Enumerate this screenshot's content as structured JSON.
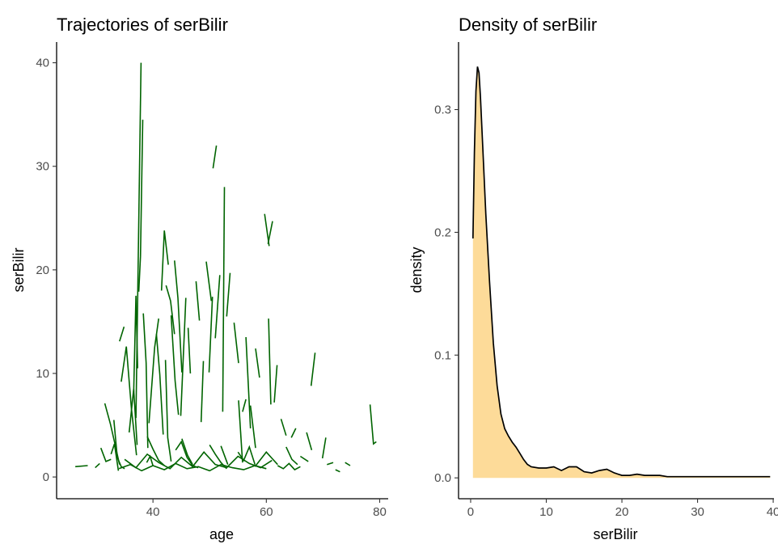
{
  "chart_data": [
    {
      "type": "line",
      "title": "Trajectories of serBilir",
      "xlabel": "age",
      "ylabel": "serBilir",
      "xlim": [
        23,
        81.5
      ],
      "ylim": [
        -2.1,
        42
      ],
      "xticks": [
        40,
        60,
        80
      ],
      "yticks": [
        0,
        10,
        20,
        30,
        40
      ],
      "grid": false,
      "line_color": "#006400",
      "series": [
        {
          "x": [
            26.3,
            28.5
          ],
          "y": [
            1.0,
            1.1
          ]
        },
        {
          "x": [
            29.8,
            30.6
          ],
          "y": [
            0.9,
            1.3
          ]
        },
        {
          "x": [
            30.8,
            31.7,
            32.6
          ],
          "y": [
            2.8,
            1.5,
            1.7
          ]
        },
        {
          "x": [
            31.5,
            32.5,
            33.2,
            34.1
          ],
          "y": [
            7.1,
            5.1,
            3.4,
            1.2
          ]
        },
        {
          "x": [
            32.6,
            33.2,
            33.9
          ],
          "y": [
            2.2,
            3.2,
            0.6
          ]
        },
        {
          "x": [
            33.1,
            33.7,
            34.4,
            35.0
          ],
          "y": [
            5.5,
            1.9,
            1.0,
            0.8
          ]
        },
        {
          "x": [
            34.1,
            34.9
          ],
          "y": [
            13.1,
            14.5
          ]
        },
        {
          "x": [
            34.4,
            35.3,
            36.2,
            37.1
          ],
          "y": [
            9.2,
            12.6,
            6.6,
            2.1
          ]
        },
        {
          "x": [
            35.8,
            36.6,
            37.2
          ],
          "y": [
            4.3,
            8.5,
            3.1
          ]
        },
        {
          "x": [
            36.6,
            37.0,
            37.3
          ],
          "y": [
            8.2,
            17.5,
            10.5
          ]
        },
        {
          "x": [
            37.0,
            37.9
          ],
          "y": [
            5.7,
            40.0
          ]
        },
        {
          "x": [
            37.5,
            37.8,
            38.2
          ],
          "y": [
            17.9,
            21.3,
            34.5
          ]
        },
        {
          "x": [
            38.3,
            38.8,
            39.1
          ],
          "y": [
            15.8,
            11.0,
            2.8
          ]
        },
        {
          "x": [
            38.9,
            39.5,
            40.0
          ],
          "y": [
            1.4,
            2.0,
            1.1
          ]
        },
        {
          "x": [
            39.3,
            40.3,
            41.0
          ],
          "y": [
            5.2,
            12.5,
            15.3
          ]
        },
        {
          "x": [
            40.6,
            41.2,
            41.8
          ],
          "y": [
            13.8,
            9.9,
            4.1
          ]
        },
        {
          "x": [
            41.5,
            42.0,
            42.7
          ],
          "y": [
            18.0,
            23.8,
            20.5
          ]
        },
        {
          "x": [
            42.2,
            42.6,
            43.2
          ],
          "y": [
            11.3,
            3.8,
            1.5
          ]
        },
        {
          "x": [
            42.3,
            43.1,
            43.8
          ],
          "y": [
            18.5,
            17.0,
            13.8
          ]
        },
        {
          "x": [
            43.2,
            43.9,
            44.5
          ],
          "y": [
            15.6,
            9.3,
            6.0
          ]
        },
        {
          "x": [
            43.8,
            44.4,
            45.1
          ],
          "y": [
            20.9,
            17.3,
            10.1
          ]
        },
        {
          "x": [
            44.9,
            45.8
          ],
          "y": [
            5.9,
            17.3
          ]
        },
        {
          "x": [
            46.2,
            46.6
          ],
          "y": [
            14.4,
            10.0
          ]
        },
        {
          "x": [
            45.1,
            46.1,
            47.0
          ],
          "y": [
            3.7,
            2.1,
            1.2
          ]
        },
        {
          "x": [
            47.6,
            48.2
          ],
          "y": [
            18.9,
            15.1
          ]
        },
        {
          "x": [
            48.5,
            48.9
          ],
          "y": [
            5.3,
            11.2
          ]
        },
        {
          "x": [
            49.4,
            50.3
          ],
          "y": [
            20.8,
            17.0
          ]
        },
        {
          "x": [
            49.9,
            50.5
          ],
          "y": [
            10.1,
            17.4
          ]
        },
        {
          "x": [
            50.6,
            51.2
          ],
          "y": [
            29.8,
            32.0
          ]
        },
        {
          "x": [
            51.0,
            51.8
          ],
          "y": [
            13.4,
            19.5
          ]
        },
        {
          "x": [
            52.3,
            52.6
          ],
          "y": [
            6.3,
            28.0
          ]
        },
        {
          "x": [
            53.0,
            53.6
          ],
          "y": [
            15.5,
            19.7
          ]
        },
        {
          "x": [
            52.0,
            53.2
          ],
          "y": [
            3.0,
            1.2
          ]
        },
        {
          "x": [
            54.3,
            55.1
          ],
          "y": [
            14.9,
            11.0
          ]
        },
        {
          "x": [
            55.1,
            55.8
          ],
          "y": [
            7.4,
            1.4
          ]
        },
        {
          "x": [
            55.8,
            56.4
          ],
          "y": [
            6.3,
            7.5
          ]
        },
        {
          "x": [
            56.4,
            57.2
          ],
          "y": [
            13.5,
            4.7
          ]
        },
        {
          "x": [
            57.2,
            58.1
          ],
          "y": [
            6.9,
            2.8
          ]
        },
        {
          "x": [
            58.1,
            58.8
          ],
          "y": [
            12.4,
            9.6
          ]
        },
        {
          "x": [
            59.7,
            60.5
          ],
          "y": [
            25.4,
            22.3
          ]
        },
        {
          "x": [
            60.3,
            61.1
          ],
          "y": [
            22.5,
            24.7
          ]
        },
        {
          "x": [
            60.4,
            60.8
          ],
          "y": [
            15.3,
            7.0
          ]
        },
        {
          "x": [
            61.4,
            61.9
          ],
          "y": [
            7.2,
            10.8
          ]
        },
        {
          "x": [
            58.0,
            59.0,
            60.0,
            61.0,
            62.0
          ],
          "y": [
            1.0,
            1.7,
            2.4,
            1.8,
            1.2
          ]
        },
        {
          "x": [
            62.6,
            63.5
          ],
          "y": [
            5.6,
            4.0
          ]
        },
        {
          "x": [
            64.4,
            65.2
          ],
          "y": [
            3.8,
            4.7
          ]
        },
        {
          "x": [
            67.9,
            68.6
          ],
          "y": [
            8.8,
            12.0
          ]
        },
        {
          "x": [
            67.1,
            68.0
          ],
          "y": [
            4.3,
            2.6
          ]
        },
        {
          "x": [
            66.0,
            67.4
          ],
          "y": [
            2.0,
            1.5
          ]
        },
        {
          "x": [
            69.9,
            70.5
          ],
          "y": [
            1.8,
            3.8
          ]
        },
        {
          "x": [
            70.7,
            71.8
          ],
          "y": [
            1.2,
            1.4
          ]
        },
        {
          "x": [
            73.9,
            74.8
          ],
          "y": [
            1.4,
            1.1
          ]
        },
        {
          "x": [
            72.2,
            73.0
          ],
          "y": [
            0.7,
            0.5
          ]
        },
        {
          "x": [
            78.3,
            78.9,
            79.4
          ],
          "y": [
            7.0,
            3.2,
            3.4
          ]
        },
        {
          "x": [
            34.0,
            36.0,
            38.0,
            40.0,
            42.0,
            44.0,
            46.0,
            48.0,
            50.0,
            52.0,
            54.0,
            56.0,
            58.0,
            60.0
          ],
          "y": [
            0.8,
            1.2,
            0.6,
            1.1,
            0.7,
            1.3,
            0.8,
            1.0,
            0.6,
            1.2,
            0.9,
            0.7,
            1.1,
            0.8
          ]
        },
        {
          "x": [
            35.0,
            37.0,
            39.0,
            41.0,
            43.0,
            45.0,
            47.0,
            49.0,
            51.0,
            53.0,
            55.0,
            57.0,
            59.0,
            61.0
          ],
          "y": [
            1.7,
            0.9,
            2.2,
            1.4,
            0.8,
            1.9,
            1.0,
            2.4,
            1.2,
            0.9,
            2.0,
            1.3,
            0.9,
            1.6
          ]
        },
        {
          "x": [
            44.0,
            45.0,
            46.0,
            47.0,
            48.0
          ],
          "y": [
            2.6,
            3.4,
            1.9,
            1.1,
            0.9
          ]
        },
        {
          "x": [
            50.0,
            51.0,
            52.0,
            53.0
          ],
          "y": [
            3.1,
            2.2,
            1.4,
            0.8
          ]
        },
        {
          "x": [
            55.0,
            56.0,
            57.0,
            58.0
          ],
          "y": [
            2.4,
            1.6,
            2.9,
            1.2
          ]
        },
        {
          "x": [
            62.0,
            63.0,
            64.0,
            65.0,
            66.0
          ],
          "y": [
            1.1,
            0.8,
            1.3,
            0.7,
            1.0
          ]
        },
        {
          "x": [
            39.0,
            40.0,
            41.0,
            42.0
          ],
          "y": [
            3.9,
            2.7,
            1.6,
            1.1
          ]
        },
        {
          "x": [
            63.5,
            64.5,
            65.5
          ],
          "y": [
            2.9,
            1.7,
            1.2
          ]
        }
      ]
    },
    {
      "type": "area",
      "title": "Density of serBilir",
      "xlabel": "serBilir",
      "ylabel": "density",
      "xlim": [
        -1.6,
        40.1
      ],
      "ylim": [
        -0.017,
        0.355
      ],
      "xticks": [
        0,
        10,
        20,
        30,
        40
      ],
      "yticks": [
        0.0,
        0.1,
        0.2,
        0.3
      ],
      "ytick_labels": [
        "0.0",
        "0.1",
        "0.2",
        "0.3"
      ],
      "grid": false,
      "fill_color": "#FDDB99",
      "line_color": "#000000",
      "x": [
        0.3,
        0.5,
        0.7,
        0.9,
        1.1,
        1.3,
        1.6,
        2.0,
        2.5,
        3.0,
        3.5,
        4.0,
        4.5,
        5.0,
        5.5,
        6.0,
        6.5,
        7.0,
        7.5,
        8.0,
        9.0,
        10.0,
        11.0,
        12.0,
        13.0,
        14.0,
        15.0,
        16.0,
        17.0,
        18.0,
        19.0,
        20.0,
        21.0,
        22.0,
        23.0,
        24.0,
        25.0,
        26.0,
        28.0,
        30.0,
        32.0,
        34.0,
        36.0,
        38.0,
        39.6
      ],
      "y": [
        0.195,
        0.265,
        0.315,
        0.335,
        0.33,
        0.31,
        0.27,
        0.215,
        0.16,
        0.11,
        0.075,
        0.052,
        0.04,
        0.034,
        0.029,
        0.025,
        0.02,
        0.015,
        0.011,
        0.009,
        0.008,
        0.008,
        0.009,
        0.006,
        0.009,
        0.009,
        0.005,
        0.004,
        0.006,
        0.007,
        0.004,
        0.002,
        0.002,
        0.003,
        0.002,
        0.002,
        0.002,
        0.001,
        0.001,
        0.001,
        0.001,
        0.001,
        0.001,
        0.001,
        0.001
      ]
    }
  ]
}
